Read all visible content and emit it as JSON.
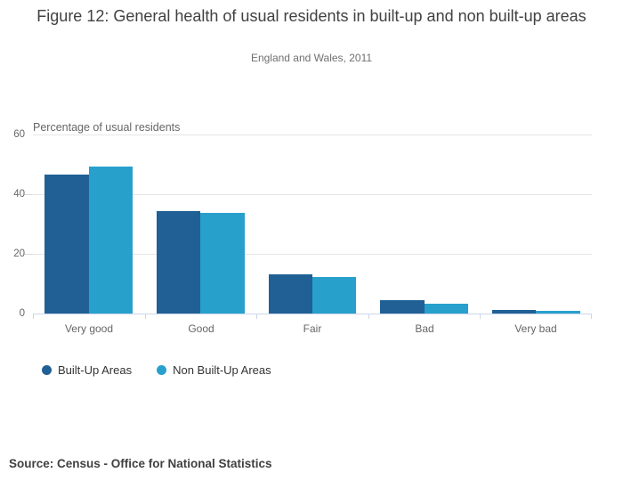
{
  "header": {
    "title": "Figure 12: General health of usual residents in built-up and non built-up areas",
    "subtitle": "England and Wales, 2011"
  },
  "chart_data": {
    "type": "bar",
    "title": "Figure 12: General health of usual residents in built-up and non built-up areas",
    "subtitle": "England and Wales, 2011",
    "xlabel": "",
    "ylabel": "Percentage of usual residents",
    "ylim": [
      0,
      60
    ],
    "yticks": [
      0,
      20,
      40,
      60
    ],
    "grid": true,
    "legend_position": "bottom-left",
    "categories": [
      "Very good",
      "Good",
      "Fair",
      "Bad",
      "Very bad"
    ],
    "series": [
      {
        "name": "Built-Up Areas",
        "color": "#206095",
        "values": [
          46.6,
          34.3,
          13.2,
          4.5,
          1.3
        ]
      },
      {
        "name": "Non Built-Up Areas",
        "color": "#27a0cc",
        "values": [
          49.4,
          33.7,
          12.3,
          3.3,
          0.8
        ]
      }
    ]
  },
  "footer": {
    "source": "Source: Census - Office for National Statistics"
  }
}
